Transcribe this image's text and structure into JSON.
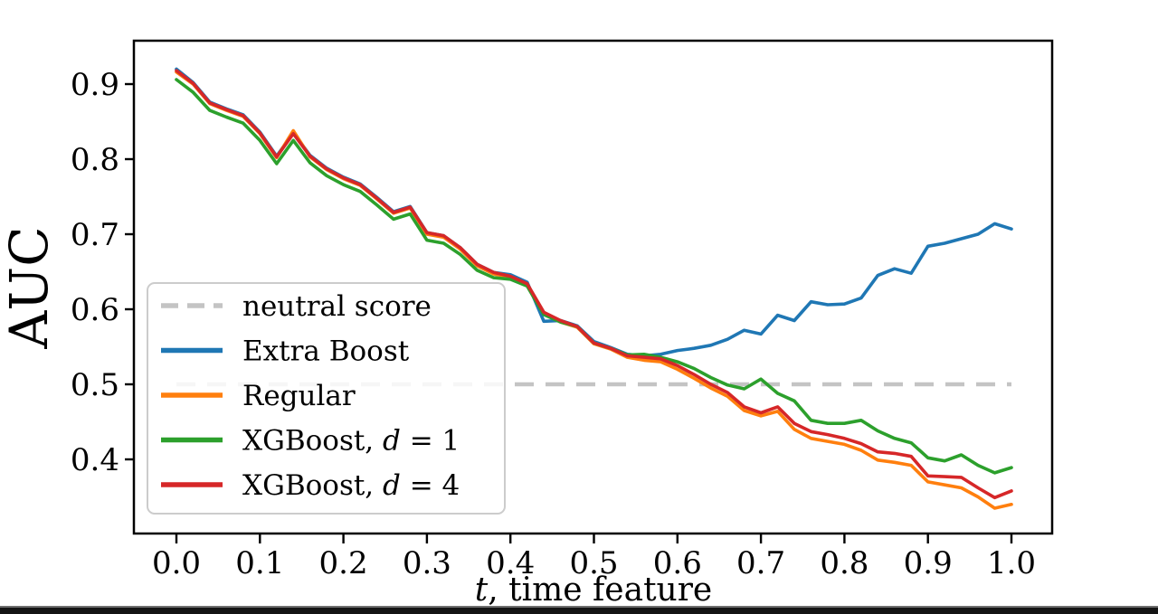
{
  "page": {
    "background_color": "#ffffff",
    "bottom_bar_color": "#141414"
  },
  "chart_data": {
    "type": "line",
    "title": "",
    "xlabel": "t, time feature",
    "xlabel_parts": [
      {
        "text": "t",
        "italic": true
      },
      {
        "text": ", time feature",
        "italic": false
      }
    ],
    "ylabel": "AUC",
    "xticks": [
      "0.0",
      "0.1",
      "0.2",
      "0.3",
      "0.4",
      "0.5",
      "0.6",
      "0.7",
      "0.8",
      "0.9",
      "1.0"
    ],
    "xtick_values": [
      0.0,
      0.1,
      0.2,
      0.3,
      0.4,
      0.5,
      0.6,
      0.7,
      0.8,
      0.9,
      1.0
    ],
    "yticks": [
      "0.4",
      "0.5",
      "0.6",
      "0.7",
      "0.8",
      "0.9"
    ],
    "ytick_values": [
      0.4,
      0.5,
      0.6,
      0.7,
      0.8,
      0.9
    ],
    "xlim": [
      -0.051,
      1.049
    ],
    "ylim": [
      0.301,
      0.958
    ],
    "grid": false,
    "legend": {
      "position": "lower left",
      "frame": true,
      "border_color": "#cccccc"
    },
    "neutral_line": {
      "label": "neutral score",
      "label_parts": [
        {
          "text": "neutral score",
          "italic": false
        }
      ],
      "y": 0.5,
      "color": "#c4c4c4",
      "style": "dashed"
    },
    "x": [
      0.0,
      0.02,
      0.04,
      0.06,
      0.08,
      0.1,
      0.12,
      0.14,
      0.16,
      0.18,
      0.2,
      0.22,
      0.24,
      0.26,
      0.28,
      0.3,
      0.32,
      0.34,
      0.36,
      0.38,
      0.4,
      0.42,
      0.44,
      0.46,
      0.48,
      0.5,
      0.52,
      0.54,
      0.56,
      0.58,
      0.6,
      0.62,
      0.64,
      0.66,
      0.68,
      0.7,
      0.72,
      0.74,
      0.76,
      0.78,
      0.8,
      0.82,
      0.84,
      0.86,
      0.88,
      0.9,
      0.92,
      0.94,
      0.96,
      0.98,
      1.0
    ],
    "series": [
      {
        "label": "Extra Boost",
        "label_parts": [
          {
            "text": "Extra Boost",
            "italic": false
          }
        ],
        "color": "#1f77b4",
        "style": "solid",
        "values": [
          0.92,
          0.902,
          0.876,
          0.867,
          0.859,
          0.836,
          0.804,
          0.835,
          0.805,
          0.788,
          0.776,
          0.767,
          0.749,
          0.73,
          0.737,
          0.702,
          0.698,
          0.682,
          0.66,
          0.649,
          0.646,
          0.636,
          0.584,
          0.585,
          0.578,
          0.557,
          0.549,
          0.54,
          0.538,
          0.54,
          0.545,
          0.548,
          0.552,
          0.56,
          0.572,
          0.567,
          0.592,
          0.585,
          0.61,
          0.606,
          0.607,
          0.615,
          0.645,
          0.654,
          0.648,
          0.684,
          0.688,
          0.694,
          0.7,
          0.714,
          0.707
        ]
      },
      {
        "label": "Regular",
        "label_parts": [
          {
            "text": "Regular",
            "italic": false
          }
        ],
        "color": "#ff7f0e",
        "style": "solid",
        "values": [
          0.916,
          0.9,
          0.874,
          0.865,
          0.857,
          0.834,
          0.802,
          0.838,
          0.803,
          0.786,
          0.774,
          0.765,
          0.747,
          0.728,
          0.735,
          0.7,
          0.696,
          0.68,
          0.658,
          0.647,
          0.643,
          0.633,
          0.594,
          0.583,
          0.576,
          0.554,
          0.547,
          0.536,
          0.532,
          0.53,
          0.52,
          0.508,
          0.495,
          0.484,
          0.465,
          0.458,
          0.464,
          0.44,
          0.428,
          0.424,
          0.42,
          0.412,
          0.399,
          0.396,
          0.392,
          0.37,
          0.366,
          0.362,
          0.35,
          0.335,
          0.34
        ]
      },
      {
        "label": "XGBoost, d = 1",
        "label_parts": [
          {
            "text": "XGBoost, ",
            "italic": false
          },
          {
            "text": "d",
            "italic": true
          },
          {
            "text": " = 1",
            "italic": false
          }
        ],
        "color": "#2ca02c",
        "style": "solid",
        "values": [
          0.906,
          0.889,
          0.865,
          0.856,
          0.848,
          0.825,
          0.794,
          0.825,
          0.795,
          0.778,
          0.766,
          0.757,
          0.739,
          0.72,
          0.727,
          0.692,
          0.688,
          0.673,
          0.652,
          0.642,
          0.64,
          0.631,
          0.593,
          0.583,
          0.577,
          0.555,
          0.548,
          0.539,
          0.54,
          0.536,
          0.53,
          0.521,
          0.509,
          0.499,
          0.494,
          0.507,
          0.488,
          0.478,
          0.452,
          0.448,
          0.448,
          0.452,
          0.438,
          0.428,
          0.422,
          0.402,
          0.398,
          0.406,
          0.392,
          0.382,
          0.389
        ]
      },
      {
        "label": "XGBoost, d = 4",
        "label_parts": [
          {
            "text": "XGBoost, ",
            "italic": false
          },
          {
            "text": "d",
            "italic": true
          },
          {
            "text": " = 4",
            "italic": false
          }
        ],
        "color": "#d62728",
        "style": "solid",
        "values": [
          0.918,
          0.901,
          0.875,
          0.866,
          0.858,
          0.835,
          0.803,
          0.834,
          0.804,
          0.787,
          0.775,
          0.766,
          0.748,
          0.729,
          0.736,
          0.702,
          0.698,
          0.682,
          0.66,
          0.649,
          0.644,
          0.634,
          0.596,
          0.585,
          0.577,
          0.555,
          0.548,
          0.538,
          0.536,
          0.534,
          0.525,
          0.513,
          0.5,
          0.489,
          0.47,
          0.462,
          0.47,
          0.448,
          0.437,
          0.433,
          0.428,
          0.421,
          0.41,
          0.408,
          0.404,
          0.378,
          0.377,
          0.376,
          0.362,
          0.349,
          0.358
        ]
      }
    ]
  }
}
